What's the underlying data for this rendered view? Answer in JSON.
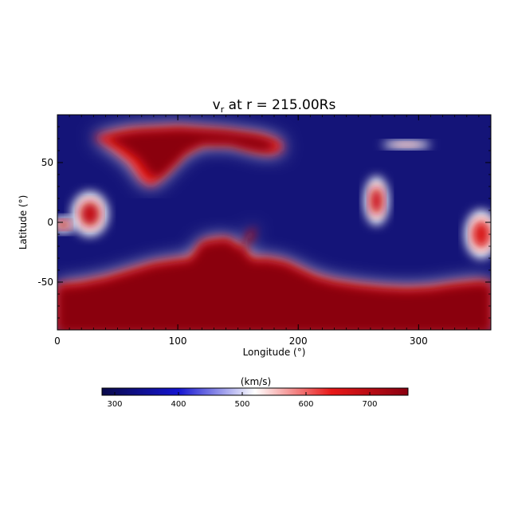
{
  "chart_data": [
    {
      "type": "heatmap",
      "title": "v",
      "title_sub": "r",
      "title_rest": " at r = 215.00Rs",
      "xlabel": "Longitude (°)",
      "ylabel": "Latitude (°)",
      "xlim": [
        0,
        360
      ],
      "ylim": [
        -90,
        90
      ],
      "x_ticks": [
        "0",
        "100",
        "200",
        "300"
      ],
      "x_tick_values": [
        0,
        100,
        200,
        300
      ],
      "y_ticks": [
        "-50",
        "0",
        "50"
      ],
      "y_tick_values": [
        -50,
        0,
        50
      ],
      "value_range": [
        280,
        760
      ],
      "colormap": [
        "#0a0a50",
        "#1010d8",
        "#ffffff",
        "#e81818",
        "#8a0010"
      ],
      "regions": {
        "background_value": 320,
        "southern_fast_boundary": [
          [
            0,
            -52
          ],
          [
            20,
            -50
          ],
          [
            40,
            -46
          ],
          [
            60,
            -40
          ],
          [
            80,
            -34
          ],
          [
            100,
            -31
          ],
          [
            110,
            -30
          ],
          [
            115,
            -24
          ],
          [
            120,
            -16
          ],
          [
            130,
            -14
          ],
          [
            140,
            -13
          ],
          [
            145,
            -15
          ],
          [
            150,
            -20
          ],
          [
            155,
            -18
          ],
          [
            160,
            -14
          ],
          [
            165,
            -3
          ],
          [
            158,
            -10
          ],
          [
            155,
            -23
          ],
          [
            162,
            -30
          ],
          [
            175,
            -30
          ],
          [
            190,
            -33
          ],
          [
            200,
            -38
          ],
          [
            215,
            -45
          ],
          [
            230,
            -49
          ],
          [
            250,
            -52
          ],
          [
            270,
            -54
          ],
          [
            290,
            -55
          ],
          [
            310,
            -54
          ],
          [
            330,
            -51
          ],
          [
            350,
            -49
          ],
          [
            360,
            -50
          ]
        ],
        "northern_fast_lobe": [
          [
            30,
            72
          ],
          [
            60,
            78
          ],
          [
            100,
            80
          ],
          [
            140,
            77
          ],
          [
            170,
            73
          ],
          [
            185,
            68
          ],
          [
            188,
            61
          ],
          [
            178,
            57
          ],
          [
            162,
            60
          ],
          [
            145,
            65
          ],
          [
            120,
            65
          ],
          [
            105,
            57
          ],
          [
            95,
            46
          ],
          [
            85,
            36
          ],
          [
            78,
            30
          ],
          [
            70,
            35
          ],
          [
            60,
            50
          ],
          [
            45,
            62
          ],
          [
            35,
            68
          ]
        ],
        "minor_fast_features": [
          {
            "x": 290,
            "y": 65,
            "rx": 12,
            "ry": 2,
            "value": 560
          },
          {
            "x": 27,
            "y": 7,
            "rx": 9,
            "ry": 11,
            "value": 690
          },
          {
            "x": 5,
            "y": -2,
            "rx": 6,
            "ry": 4,
            "value": 700
          },
          {
            "x": 265,
            "y": 18,
            "rx": 6,
            "ry": 12,
            "value": 680
          },
          {
            "x": 352,
            "y": -10,
            "rx": 8,
            "ry": 12,
            "value": 660
          }
        ]
      }
    },
    {
      "type": "colorbar",
      "label": "(km/s)",
      "ticks": [
        "300",
        "400",
        "500",
        "600",
        "700"
      ],
      "tick_values": [
        300,
        400,
        500,
        600,
        700
      ],
      "range": [
        280,
        760
      ]
    }
  ]
}
